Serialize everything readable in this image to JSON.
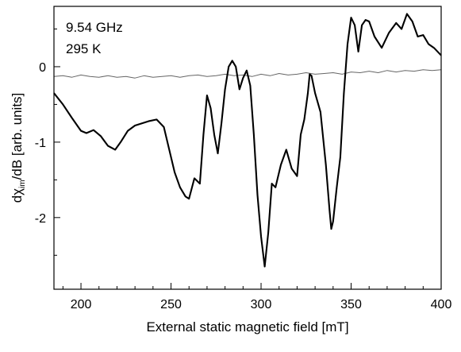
{
  "chart_data": {
    "type": "line",
    "xlabel": "External static magnetic field [mT]",
    "ylabel_main": "dχ",
    "ylabel_sub": "im",
    "ylabel_rest": "/dB [arb. units]",
    "annotations": [
      "9.54 GHz",
      "295 K"
    ],
    "xlim": [
      185,
      400
    ],
    "ylim": [
      -2.95,
      0.8
    ],
    "xticks": [
      200,
      250,
      300,
      350,
      400
    ],
    "yticks": [
      0,
      -1,
      -2
    ],
    "xtick_labels": [
      "200",
      "250",
      "300",
      "350",
      "400"
    ],
    "ytick_labels": [
      "0",
      "-1",
      "-2"
    ],
    "grid": false,
    "colors": {
      "signal": "#000000",
      "baseline": "#666666"
    },
    "series": [
      {
        "x": [
          185,
          190,
          195,
          200,
          203,
          207,
          211,
          215,
          219,
          222,
          226,
          230,
          234,
          238,
          242,
          246,
          249,
          252,
          255,
          258,
          260,
          263,
          266,
          268,
          270,
          272,
          274,
          276,
          278,
          280,
          282,
          284,
          286,
          288,
          290,
          292,
          294,
          296,
          298,
          300,
          302,
          304,
          306,
          308,
          311,
          314,
          317,
          320,
          322,
          324,
          326,
          327,
          328,
          330,
          333,
          336,
          338,
          339,
          340,
          342,
          344,
          346,
          348,
          350,
          352,
          354,
          356,
          358,
          360,
          363,
          367,
          371,
          375,
          378,
          381,
          384,
          387,
          390,
          393,
          396,
          400
        ],
        "y": [
          -0.35,
          -0.5,
          -0.68,
          -0.85,
          -0.88,
          -0.84,
          -0.92,
          -1.05,
          -1.1,
          -1.0,
          -0.85,
          -0.78,
          -0.75,
          -0.72,
          -0.7,
          -0.8,
          -1.1,
          -1.4,
          -1.6,
          -1.72,
          -1.75,
          -1.48,
          -1.55,
          -0.9,
          -0.38,
          -0.55,
          -0.9,
          -1.15,
          -0.75,
          -0.3,
          0.0,
          0.08,
          0.0,
          -0.3,
          -0.15,
          -0.05,
          -0.25,
          -0.9,
          -1.7,
          -2.25,
          -2.65,
          -2.2,
          -1.55,
          -1.6,
          -1.3,
          -1.1,
          -1.35,
          -1.45,
          -0.9,
          -0.7,
          -0.35,
          -0.1,
          -0.12,
          -0.35,
          -0.6,
          -1.3,
          -1.9,
          -2.15,
          -2.05,
          -1.6,
          -1.2,
          -0.35,
          0.3,
          0.65,
          0.55,
          0.2,
          0.55,
          0.62,
          0.6,
          0.4,
          0.25,
          0.45,
          0.58,
          0.5,
          0.7,
          0.6,
          0.4,
          0.42,
          0.3,
          0.25,
          0.15
        ]
      },
      {
        "x": [
          185,
          190,
          195,
          200,
          205,
          210,
          215,
          220,
          225,
          230,
          235,
          240,
          245,
          250,
          255,
          260,
          265,
          270,
          275,
          280,
          285,
          290,
          295,
          300,
          305,
          310,
          315,
          320,
          325,
          330,
          335,
          340,
          345,
          350,
          355,
          360,
          365,
          370,
          375,
          380,
          385,
          390,
          395,
          400
        ],
        "y": [
          -0.13,
          -0.12,
          -0.14,
          -0.11,
          -0.13,
          -0.14,
          -0.12,
          -0.14,
          -0.13,
          -0.15,
          -0.12,
          -0.14,
          -0.13,
          -0.12,
          -0.14,
          -0.12,
          -0.11,
          -0.13,
          -0.12,
          -0.1,
          -0.12,
          -0.11,
          -0.13,
          -0.1,
          -0.12,
          -0.09,
          -0.11,
          -0.1,
          -0.08,
          -0.1,
          -0.09,
          -0.08,
          -0.1,
          -0.07,
          -0.08,
          -0.06,
          -0.08,
          -0.05,
          -0.07,
          -0.05,
          -0.06,
          -0.04,
          -0.05,
          -0.04
        ]
      }
    ]
  }
}
